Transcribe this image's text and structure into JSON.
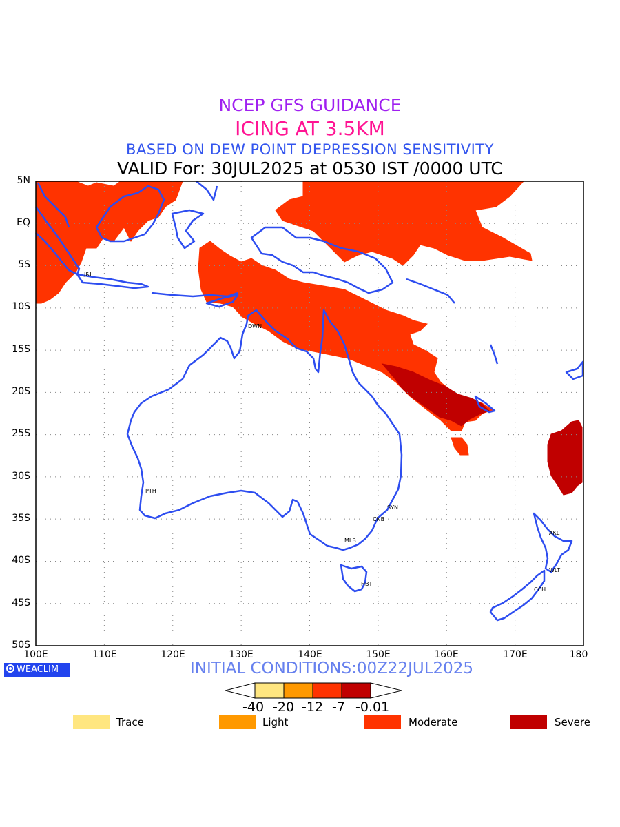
{
  "header": {
    "line1": "NCEP GFS GUIDANCE",
    "line2": "ICING AT 3.5KM",
    "line3": "BASED ON DEW POINT DEPRESSION SENSITIVITY",
    "line4": "VALID For: 30JUL2025 at 0530 IST /0000 UTC"
  },
  "map": {
    "lat_labels": [
      "5N",
      "EQ",
      "5S",
      "10S",
      "15S",
      "20S",
      "25S",
      "30S",
      "35S",
      "40S",
      "45S",
      "50S"
    ],
    "lon_labels": [
      "100E",
      "110E",
      "120E",
      "130E",
      "140E",
      "150E",
      "160E",
      "170E",
      "180"
    ],
    "stations": [
      "JKT",
      "DWN",
      "PTH",
      "SYN",
      "CNB",
      "MLB",
      "HBT",
      "AKL",
      "WLT",
      "CCH"
    ],
    "coastline_color": "#2d4df0",
    "grid": "dotted"
  },
  "footer": {
    "brand": "WEACLIM",
    "initial_conditions": "INITIAL CONDITIONS:00Z22JUL2025"
  },
  "colorbar": {
    "colors": [
      "#ffe680",
      "#ff9900",
      "#ff3300",
      "#c00000"
    ],
    "tick_labels": [
      "-40",
      "-20",
      "-12",
      "-7",
      "-0.01"
    ]
  },
  "legend": {
    "items": [
      {
        "label": "Trace",
        "color": "#ffe680"
      },
      {
        "label": "Light",
        "color": "#ff9900"
      },
      {
        "label": "Moderate",
        "color": "#ff3300"
      },
      {
        "label": "Severe",
        "color": "#c00000"
      }
    ]
  }
}
